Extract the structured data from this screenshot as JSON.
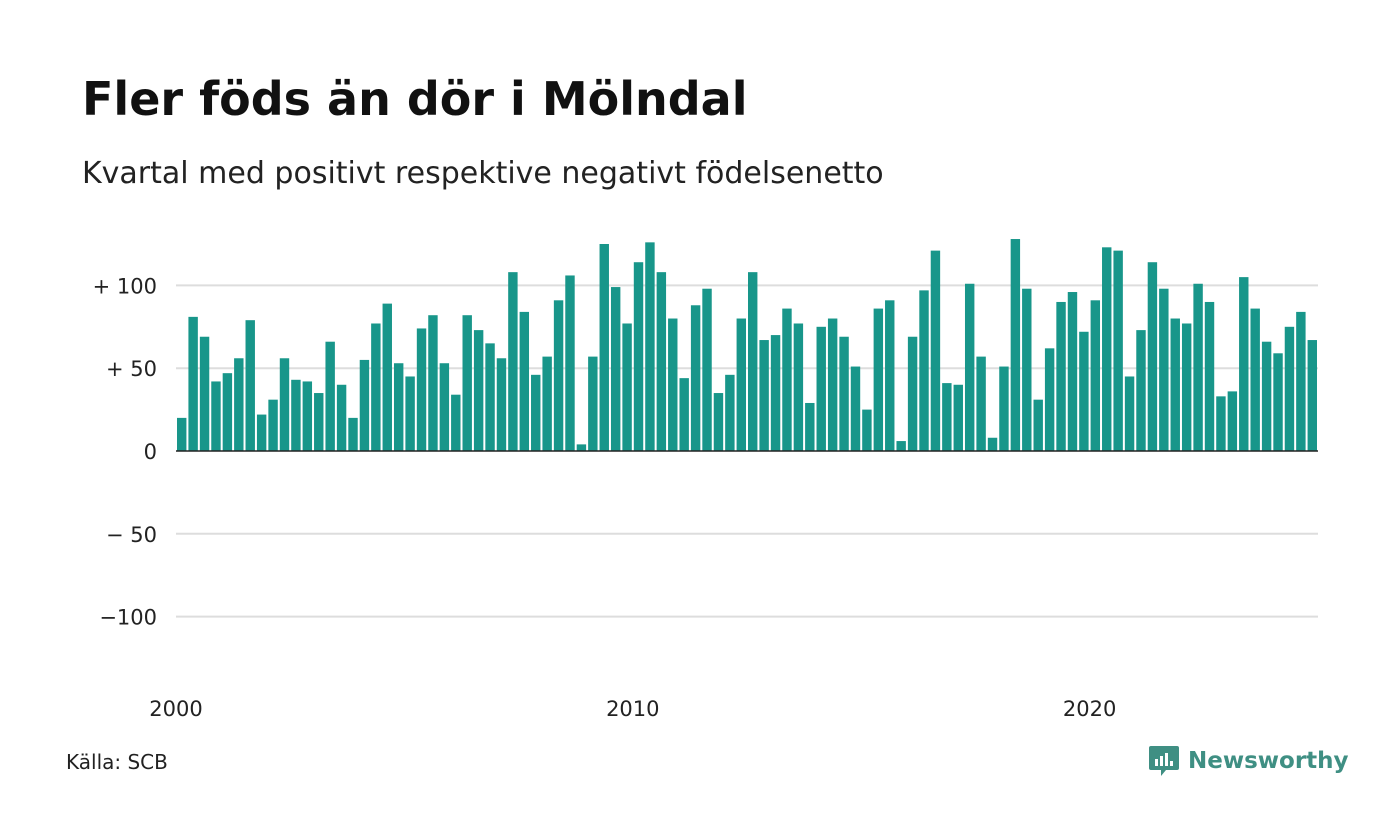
{
  "title": "Fler föds än dör i Mölndal",
  "subtitle": "Kvartal med positivt respektive negativt födelsenetto",
  "source": "Källa: SCB",
  "brand": "Newsworthy",
  "colors": {
    "bar": "#18968a",
    "grid": "#dddddd",
    "zero": "#222222",
    "brand": "#3f8f83"
  },
  "chart_data": {
    "type": "bar",
    "ylim": [
      -140,
      135
    ],
    "grid": true,
    "ytick_values": [
      100,
      50,
      0,
      -50,
      -100
    ],
    "ytick_labels": [
      "+ 100",
      "+  50",
      "0",
      "− 50",
      "−100"
    ],
    "xtick_labels": [
      "2000",
      "2010",
      "2020"
    ],
    "xtick_years": [
      2000,
      2010,
      2020
    ],
    "start": "2000Q1",
    "values": [
      20,
      81,
      69,
      42,
      47,
      56,
      79,
      22,
      31,
      56,
      43,
      42,
      35,
      66,
      40,
      20,
      55,
      77,
      89,
      53,
      45,
      74,
      82,
      53,
      34,
      82,
      73,
      65,
      56,
      108,
      84,
      46,
      57,
      91,
      106,
      4,
      57,
      125,
      99,
      77,
      114,
      126,
      108,
      80,
      44,
      88,
      98,
      35,
      46,
      80,
      108,
      67,
      70,
      86,
      77,
      29,
      75,
      80,
      69,
      51,
      25,
      86,
      91,
      6,
      69,
      97,
      121,
      41,
      40,
      101,
      57,
      8,
      51,
      128,
      98,
      31,
      62,
      90,
      96,
      72,
      91,
      123,
      121,
      45,
      73,
      114,
      98,
      80,
      77,
      101,
      90,
      33,
      36,
      105,
      86,
      66,
      59,
      75,
      84,
      67
    ]
  }
}
